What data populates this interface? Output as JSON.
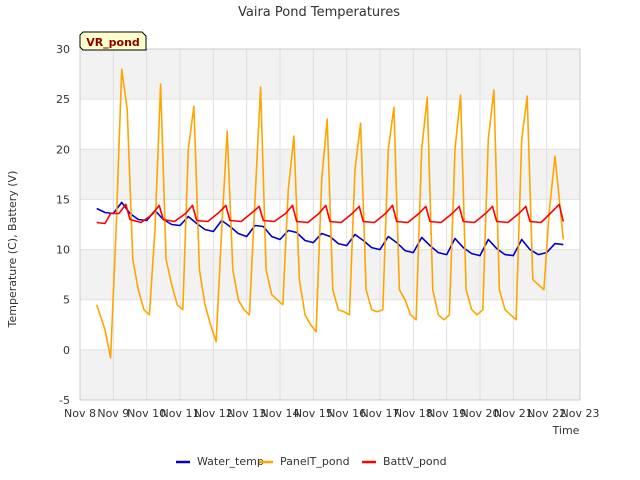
{
  "chart_data": {
    "type": "line",
    "title": "Vaira Pond Temperatures",
    "xlabel": "Time",
    "ylabel": "Temperature (C), Battery (V)",
    "site_label": "VR_pond",
    "ylim": [
      -5,
      30
    ],
    "yticks": [
      -5,
      0,
      5,
      10,
      15,
      20,
      25,
      30
    ],
    "xlim": [
      "2021-11-08",
      "2021-11-23"
    ],
    "xticks": [
      {
        "date": "2021-11-08",
        "label": "Nov 8"
      },
      {
        "date": "2021-11-09",
        "label": "Nov 9"
      },
      {
        "date": "2021-11-10",
        "label": "Nov 10"
      },
      {
        "date": "2021-11-11",
        "label": "Nov 11"
      },
      {
        "date": "2021-11-12",
        "label": "Nov 12"
      },
      {
        "date": "2021-11-13",
        "label": "Nov 13"
      },
      {
        "date": "2021-11-14",
        "label": "Nov 14"
      },
      {
        "date": "2021-11-15",
        "label": "Nov 15"
      },
      {
        "date": "2021-11-16",
        "label": "Nov 16"
      },
      {
        "date": "2021-11-17",
        "label": "Nov 17"
      },
      {
        "date": "2021-11-18",
        "label": "Nov 18"
      },
      {
        "date": "2021-11-19",
        "label": "Nov 19"
      },
      {
        "date": "2021-11-20",
        "label": "Nov 20"
      },
      {
        "date": "2021-11-21",
        "label": "Nov 21"
      },
      {
        "date": "2021-11-22",
        "label": "Nov 22"
      },
      {
        "date": "2021-11-23",
        "label": "Nov 23"
      }
    ],
    "legend_position": "bottom",
    "grid": true,
    "series": [
      {
        "name": "Water_temp",
        "color": "#0000cc",
        "x": [
          "2021-11-08 12:00",
          "2021-11-08 18:00",
          "2021-11-09 00:00",
          "2021-11-09 06:00",
          "2021-11-09 12:00",
          "2021-11-09 18:00",
          "2021-11-10 00:00",
          "2021-11-10 06:00",
          "2021-11-10 12:00",
          "2021-11-10 18:00",
          "2021-11-11 00:00",
          "2021-11-11 06:00",
          "2021-11-11 12:00",
          "2021-11-11 18:00",
          "2021-11-12 00:00",
          "2021-11-12 06:00",
          "2021-11-12 12:00",
          "2021-11-12 18:00",
          "2021-11-13 00:00",
          "2021-11-13 06:00",
          "2021-11-13 12:00",
          "2021-11-13 18:00",
          "2021-11-14 00:00",
          "2021-11-14 06:00",
          "2021-11-14 12:00",
          "2021-11-14 18:00",
          "2021-11-15 00:00",
          "2021-11-15 06:00",
          "2021-11-15 12:00",
          "2021-11-15 18:00",
          "2021-11-16 00:00",
          "2021-11-16 06:00",
          "2021-11-16 12:00",
          "2021-11-16 18:00",
          "2021-11-17 00:00",
          "2021-11-17 06:00",
          "2021-11-17 12:00",
          "2021-11-17 18:00",
          "2021-11-18 00:00",
          "2021-11-18 06:00",
          "2021-11-18 12:00",
          "2021-11-18 18:00",
          "2021-11-19 00:00",
          "2021-11-19 06:00",
          "2021-11-19 12:00",
          "2021-11-19 18:00",
          "2021-11-20 00:00",
          "2021-11-20 06:00",
          "2021-11-20 12:00",
          "2021-11-20 18:00",
          "2021-11-21 00:00",
          "2021-11-21 06:00",
          "2021-11-21 12:00",
          "2021-11-21 18:00",
          "2021-11-22 00:00",
          "2021-11-22 06:00",
          "2021-11-22 12:00"
        ],
        "y": [
          14.1,
          13.7,
          13.6,
          14.7,
          13.6,
          13.0,
          12.9,
          13.9,
          13.0,
          12.5,
          12.4,
          13.3,
          12.6,
          12.0,
          11.8,
          12.9,
          12.3,
          11.6,
          11.3,
          12.4,
          12.3,
          11.3,
          11.0,
          11.9,
          11.7,
          10.9,
          10.7,
          11.6,
          11.3,
          10.6,
          10.4,
          11.5,
          10.9,
          10.2,
          10.0,
          11.3,
          10.7,
          9.9,
          9.7,
          11.2,
          10.4,
          9.7,
          9.5,
          11.1,
          10.2,
          9.6,
          9.4,
          11.0,
          10.1,
          9.5,
          9.4,
          11.0,
          10.0,
          9.5,
          9.7,
          10.6,
          10.5
        ]
      },
      {
        "name": "PanelT_pond",
        "color": "#ffa500",
        "x": [
          "2021-11-08 12:00",
          "2021-11-08 18:00",
          "2021-11-08 22:00",
          "2021-11-09 02:00",
          "2021-11-09 06:00",
          "2021-11-09 10:00",
          "2021-11-09 14:00",
          "2021-11-09 18:00",
          "2021-11-09 22:00",
          "2021-11-10 02:00",
          "2021-11-10 06:00",
          "2021-11-10 10:00",
          "2021-11-10 14:00",
          "2021-11-10 18:00",
          "2021-11-10 22:00",
          "2021-11-11 02:00",
          "2021-11-11 06:00",
          "2021-11-11 10:00",
          "2021-11-11 14:00",
          "2021-11-11 18:00",
          "2021-11-11 22:00",
          "2021-11-12 02:00",
          "2021-11-12 06:00",
          "2021-11-12 10:00",
          "2021-11-12 14:00",
          "2021-11-12 18:00",
          "2021-11-12 22:00",
          "2021-11-13 02:00",
          "2021-11-13 06:00",
          "2021-11-13 10:00",
          "2021-11-13 14:00",
          "2021-11-13 18:00",
          "2021-11-13 22:00",
          "2021-11-14 02:00",
          "2021-11-14 06:00",
          "2021-11-14 10:00",
          "2021-11-14 14:00",
          "2021-11-14 18:00",
          "2021-11-14 22:00",
          "2021-11-15 02:00",
          "2021-11-15 06:00",
          "2021-11-15 10:00",
          "2021-11-15 14:00",
          "2021-11-15 18:00",
          "2021-11-15 22:00",
          "2021-11-16 02:00",
          "2021-11-16 06:00",
          "2021-11-16 10:00",
          "2021-11-16 14:00",
          "2021-11-16 18:00",
          "2021-11-16 22:00",
          "2021-11-17 02:00",
          "2021-11-17 06:00",
          "2021-11-17 10:00",
          "2021-11-17 14:00",
          "2021-11-17 18:00",
          "2021-11-17 22:00",
          "2021-11-18 02:00",
          "2021-11-18 06:00",
          "2021-11-18 10:00",
          "2021-11-18 14:00",
          "2021-11-18 18:00",
          "2021-11-18 22:00",
          "2021-11-19 02:00",
          "2021-11-19 06:00",
          "2021-11-19 10:00",
          "2021-11-19 14:00",
          "2021-11-19 18:00",
          "2021-11-19 22:00",
          "2021-11-20 02:00",
          "2021-11-20 06:00",
          "2021-11-20 10:00",
          "2021-11-20 14:00",
          "2021-11-20 18:00",
          "2021-11-20 22:00",
          "2021-11-21 02:00",
          "2021-11-21 06:00",
          "2021-11-21 10:00",
          "2021-11-21 14:00",
          "2021-11-21 18:00",
          "2021-11-21 22:00",
          "2021-11-22 02:00",
          "2021-11-22 06:00",
          "2021-11-22 12:00"
        ],
        "y": [
          4.5,
          2.0,
          -0.8,
          12.0,
          28.0,
          24.0,
          9.0,
          6.0,
          4.0,
          3.5,
          12.0,
          26.5,
          9.0,
          6.5,
          4.5,
          4.0,
          20.0,
          24.3,
          8.0,
          4.5,
          2.5,
          0.8,
          12.0,
          21.8,
          8.0,
          5.0,
          4.0,
          3.5,
          15.0,
          26.2,
          8.0,
          5.5,
          5.0,
          4.5,
          16.0,
          21.3,
          7.0,
          3.5,
          2.5,
          1.8,
          17.0,
          23.0,
          6.0,
          4.0,
          3.8,
          3.5,
          18.0,
          22.6,
          6.0,
          4.0,
          3.8,
          4.0,
          20.0,
          24.2,
          6.0,
          5.0,
          3.5,
          3.0,
          20.0,
          25.2,
          6.0,
          3.5,
          3.0,
          3.5,
          20.0,
          25.4,
          6.0,
          4.0,
          3.5,
          4.0,
          21.0,
          25.9,
          6.0,
          4.0,
          3.5,
          3.0,
          21.0,
          25.3,
          7.0,
          6.5,
          6.0,
          14.0,
          19.3,
          11.0
        ]
      },
      {
        "name": "BattV_pond",
        "color": "#ff0000",
        "x": [
          "2021-11-08 12:00",
          "2021-11-08 18:00",
          "2021-11-08 22:00",
          "2021-11-09 04:00",
          "2021-11-09 09:00",
          "2021-11-09 12:00",
          "2021-11-09 20:00",
          "2021-11-10 04:00",
          "2021-11-10 09:00",
          "2021-11-10 12:00",
          "2021-11-10 20:00",
          "2021-11-11 04:00",
          "2021-11-11 09:00",
          "2021-11-11 12:00",
          "2021-11-11 20:00",
          "2021-11-12 04:00",
          "2021-11-12 09:00",
          "2021-11-12 12:00",
          "2021-11-12 20:00",
          "2021-11-13 04:00",
          "2021-11-13 09:00",
          "2021-11-13 12:00",
          "2021-11-13 20:00",
          "2021-11-14 04:00",
          "2021-11-14 09:00",
          "2021-11-14 12:00",
          "2021-11-14 20:00",
          "2021-11-15 04:00",
          "2021-11-15 09:00",
          "2021-11-15 12:00",
          "2021-11-15 20:00",
          "2021-11-16 04:00",
          "2021-11-16 09:00",
          "2021-11-16 12:00",
          "2021-11-16 20:00",
          "2021-11-17 04:00",
          "2021-11-17 09:00",
          "2021-11-17 12:00",
          "2021-11-17 20:00",
          "2021-11-18 04:00",
          "2021-11-18 09:00",
          "2021-11-18 12:00",
          "2021-11-18 20:00",
          "2021-11-19 04:00",
          "2021-11-19 09:00",
          "2021-11-19 12:00",
          "2021-11-19 20:00",
          "2021-11-20 04:00",
          "2021-11-20 09:00",
          "2021-11-20 12:00",
          "2021-11-20 20:00",
          "2021-11-21 04:00",
          "2021-11-21 09:00",
          "2021-11-21 12:00",
          "2021-11-21 20:00",
          "2021-11-22 04:00",
          "2021-11-22 09:00",
          "2021-11-22 12:00"
        ],
        "y": [
          12.7,
          12.6,
          13.6,
          13.6,
          14.5,
          13.0,
          12.7,
          13.5,
          14.4,
          13.0,
          12.8,
          13.6,
          14.4,
          12.9,
          12.8,
          13.7,
          14.4,
          12.9,
          12.8,
          13.7,
          14.3,
          12.9,
          12.8,
          13.6,
          14.4,
          12.8,
          12.7,
          13.6,
          14.4,
          12.8,
          12.7,
          13.6,
          14.3,
          12.8,
          12.7,
          13.6,
          14.4,
          12.8,
          12.7,
          13.6,
          14.3,
          12.8,
          12.7,
          13.6,
          14.3,
          12.8,
          12.7,
          13.6,
          14.3,
          12.8,
          12.7,
          13.6,
          14.3,
          12.8,
          12.7,
          13.8,
          14.5,
          12.8
        ]
      }
    ]
  }
}
